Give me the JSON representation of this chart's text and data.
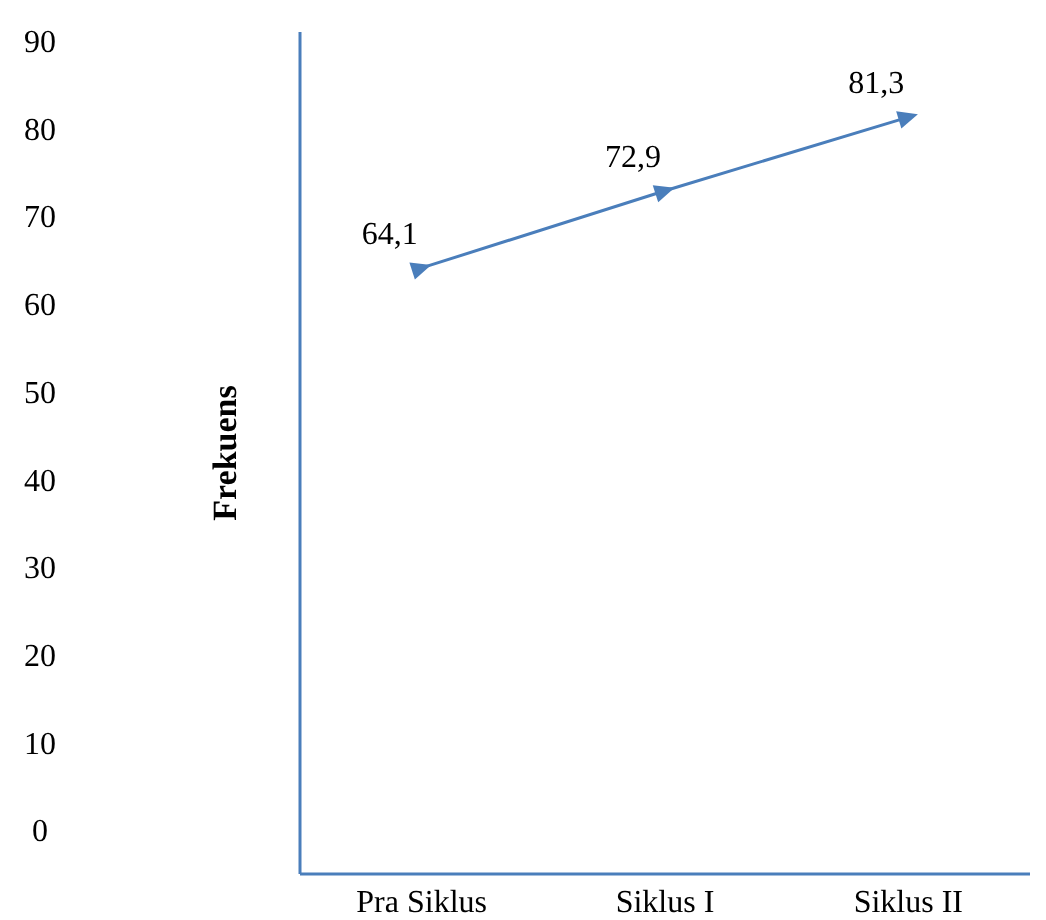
{
  "chart_data": {
    "type": "line",
    "ylabel": "Frekuens",
    "categories": [
      "Pra Siklus",
      "Siklus I",
      "Siklus II"
    ],
    "series": [
      {
        "color": "#4a7ebb",
        "values": [
          64.1,
          72.9,
          81.3
        ],
        "value_labels": [
          "64,1",
          "72,9",
          "81,3"
        ]
      }
    ],
    "ylim": [
      -5,
      91
    ],
    "yticks": [
      0,
      10,
      20,
      30,
      40,
      50,
      60,
      70,
      80,
      90
    ],
    "grid": false,
    "marker": "triangle",
    "line_style": "solid"
  }
}
